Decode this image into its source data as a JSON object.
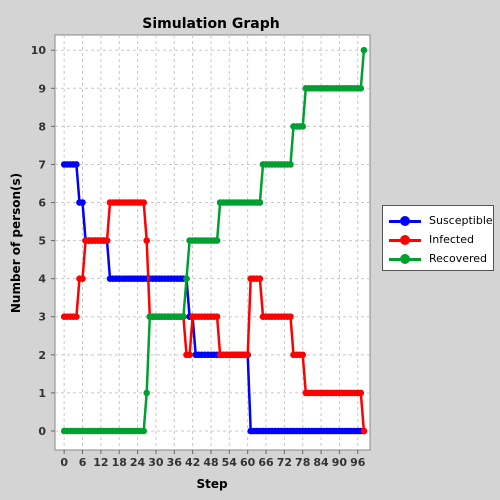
{
  "chart_data": {
    "type": "line",
    "title": "Simulation Graph",
    "xlabel": "Step",
    "ylabel": "Number of person(s)",
    "xlim": [
      -3,
      100
    ],
    "ylim": [
      -0.5,
      10.4
    ],
    "xticks": [
      0,
      6,
      12,
      18,
      24,
      30,
      36,
      42,
      48,
      54,
      60,
      66,
      72,
      78,
      84,
      90,
      96
    ],
    "yticks": [
      0,
      1,
      2,
      3,
      4,
      5,
      6,
      7,
      8,
      9,
      10
    ],
    "grid": true,
    "legend_position": "right",
    "x": [
      0,
      1,
      2,
      3,
      4,
      5,
      6,
      7,
      8,
      9,
      10,
      11,
      12,
      13,
      14,
      15,
      16,
      17,
      18,
      19,
      20,
      21,
      22,
      23,
      24,
      25,
      26,
      27,
      28,
      29,
      30,
      31,
      32,
      33,
      34,
      35,
      36,
      37,
      38,
      39,
      40,
      41,
      42,
      43,
      44,
      45,
      46,
      47,
      48,
      49,
      50,
      51,
      52,
      53,
      54,
      55,
      56,
      57,
      58,
      59,
      60,
      61,
      62,
      63,
      64,
      65,
      66,
      67,
      68,
      69,
      70,
      71,
      72,
      73,
      74,
      75,
      76,
      77,
      78,
      79,
      80,
      81,
      82,
      83,
      84,
      85,
      86,
      87,
      88,
      89,
      90,
      91,
      92,
      93,
      94,
      95,
      96,
      97,
      98
    ],
    "series": [
      {
        "name": "Susceptible",
        "color": "#0000ff",
        "values": [
          7,
          7,
          7,
          7,
          7,
          6,
          6,
          5,
          5,
          5,
          5,
          5,
          5,
          5,
          5,
          4,
          4,
          4,
          4,
          4,
          4,
          4,
          4,
          4,
          4,
          4,
          4,
          4,
          4,
          4,
          4,
          4,
          4,
          4,
          4,
          4,
          4,
          4,
          4,
          4,
          4,
          3,
          3,
          2,
          2,
          2,
          2,
          2,
          2,
          2,
          2,
          2,
          2,
          2,
          2,
          2,
          2,
          2,
          2,
          2,
          2,
          0,
          0,
          0,
          0,
          0,
          0,
          0,
          0,
          0,
          0,
          0,
          0,
          0,
          0,
          0,
          0,
          0,
          0,
          0,
          0,
          0,
          0,
          0,
          0,
          0,
          0,
          0,
          0,
          0,
          0,
          0,
          0,
          0,
          0,
          0,
          0,
          0,
          0
        ]
      },
      {
        "name": "Infected",
        "color": "#ff0000",
        "values": [
          3,
          3,
          3,
          3,
          3,
          4,
          4,
          5,
          5,
          5,
          5,
          5,
          5,
          5,
          5,
          6,
          6,
          6,
          6,
          6,
          6,
          6,
          6,
          6,
          6,
          6,
          6,
          5,
          3,
          3,
          3,
          3,
          3,
          3,
          3,
          3,
          3,
          3,
          3,
          3,
          2,
          2,
          3,
          3,
          3,
          3,
          3,
          3,
          3,
          3,
          3,
          2,
          2,
          2,
          2,
          2,
          2,
          2,
          2,
          2,
          2,
          4,
          4,
          4,
          4,
          3,
          3,
          3,
          3,
          3,
          3,
          3,
          3,
          3,
          3,
          2,
          2,
          2,
          2,
          1,
          1,
          1,
          1,
          1,
          1,
          1,
          1,
          1,
          1,
          1,
          1,
          1,
          1,
          1,
          1,
          1,
          1,
          1,
          0
        ]
      },
      {
        "name": "Recovered",
        "color": "#00a030",
        "values": [
          0,
          0,
          0,
          0,
          0,
          0,
          0,
          0,
          0,
          0,
          0,
          0,
          0,
          0,
          0,
          0,
          0,
          0,
          0,
          0,
          0,
          0,
          0,
          0,
          0,
          0,
          0,
          1,
          3,
          3,
          3,
          3,
          3,
          3,
          3,
          3,
          3,
          3,
          3,
          3,
          4,
          5,
          5,
          5,
          5,
          5,
          5,
          5,
          5,
          5,
          5,
          6,
          6,
          6,
          6,
          6,
          6,
          6,
          6,
          6,
          6,
          6,
          6,
          6,
          6,
          7,
          7,
          7,
          7,
          7,
          7,
          7,
          7,
          7,
          7,
          8,
          8,
          8,
          8,
          9,
          9,
          9,
          9,
          9,
          9,
          9,
          9,
          9,
          9,
          9,
          9,
          9,
          9,
          9,
          9,
          9,
          9,
          9,
          10
        ]
      }
    ]
  }
}
